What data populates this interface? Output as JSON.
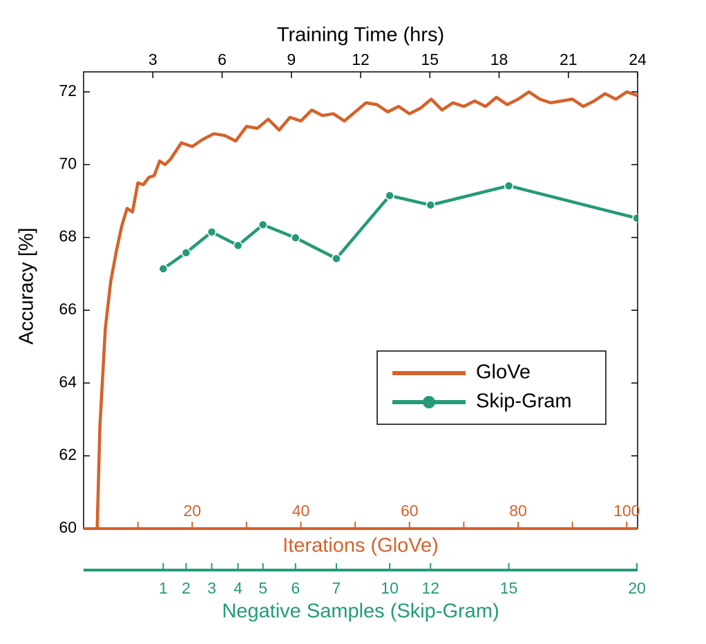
{
  "chart_data": {
    "type": "line",
    "ylabel": "Accuracy [%]",
    "ylim": [
      60,
      72.55
    ],
    "yticks": [
      60,
      62,
      64,
      66,
      68,
      70,
      72
    ],
    "x_axes": [
      {
        "label": "Training Time (hrs)",
        "color": "#000000",
        "xlim": [
          0,
          24
        ],
        "xticks": [
          3,
          6,
          9,
          12,
          15,
          18,
          21,
          24
        ]
      },
      {
        "label": "Iterations (GloVe)",
        "color": "#d4622a",
        "xlim": [
          0,
          102
        ],
        "xticks": [
          20,
          40,
          60,
          80,
          100
        ],
        "minor_ticks": [
          10,
          30,
          50,
          70,
          90
        ]
      },
      {
        "label": "Negative Samples (Skip-Gram)",
        "color": "#249a78",
        "xlim": [
          0,
          24
        ],
        "xticks": [
          {
            "value": 3.45,
            "label": "1"
          },
          {
            "value": 4.44,
            "label": "2"
          },
          {
            "value": 5.55,
            "label": "3"
          },
          {
            "value": 6.69,
            "label": "4"
          },
          {
            "value": 7.77,
            "label": "5"
          },
          {
            "value": 9.18,
            "label": "6"
          },
          {
            "value": 10.95,
            "label": "7"
          },
          {
            "value": 13.26,
            "label": "10"
          },
          {
            "value": 15.03,
            "label": "12"
          },
          {
            "value": 18.42,
            "label": "15"
          },
          {
            "value": 23.97,
            "label": "20"
          }
        ]
      }
    ],
    "legend": "lower right",
    "series": [
      {
        "name": "GloVe",
        "color": "#d4622a",
        "x_axis": 1,
        "markers": false,
        "x": [
          2.5,
          3,
          4,
          5,
          6,
          7,
          8,
          9,
          10,
          11,
          12,
          13,
          14,
          15,
          16,
          18,
          20,
          22,
          24,
          26,
          28,
          30,
          32,
          34,
          36,
          38,
          40,
          42,
          44,
          46,
          48,
          50,
          52,
          54,
          56,
          58,
          60,
          62,
          64,
          66,
          68,
          70,
          72,
          74,
          76,
          78,
          80,
          82,
          84,
          86,
          88,
          90,
          92,
          94,
          96,
          98,
          100,
          102
        ],
        "values": [
          60,
          62.8,
          65.5,
          66.8,
          67.6,
          68.3,
          68.8,
          68.7,
          69.5,
          69.45,
          69.65,
          69.7,
          70.1,
          70.0,
          70.15,
          70.6,
          70.5,
          70.7,
          70.85,
          70.8,
          70.65,
          71.05,
          71.0,
          71.25,
          70.95,
          71.3,
          71.2,
          71.5,
          71.35,
          71.4,
          71.2,
          71.45,
          71.7,
          71.65,
          71.45,
          71.6,
          71.4,
          71.55,
          71.8,
          71.5,
          71.7,
          71.6,
          71.75,
          71.6,
          71.85,
          71.65,
          71.8,
          72.0,
          71.8,
          71.7,
          71.75,
          71.8,
          71.6,
          71.75,
          71.95,
          71.8,
          72.0,
          71.9
        ]
      },
      {
        "name": "Skip-Gram",
        "color": "#249a78",
        "x_axis": 0,
        "markers": true,
        "x": [
          3.45,
          4.44,
          5.55,
          6.69,
          7.77,
          9.18,
          10.95,
          13.26,
          15.03,
          18.42,
          23.97
        ],
        "values": [
          67.14,
          67.58,
          68.15,
          67.78,
          68.35,
          67.99,
          67.42,
          69.15,
          68.89,
          69.42,
          68.53
        ]
      }
    ]
  }
}
